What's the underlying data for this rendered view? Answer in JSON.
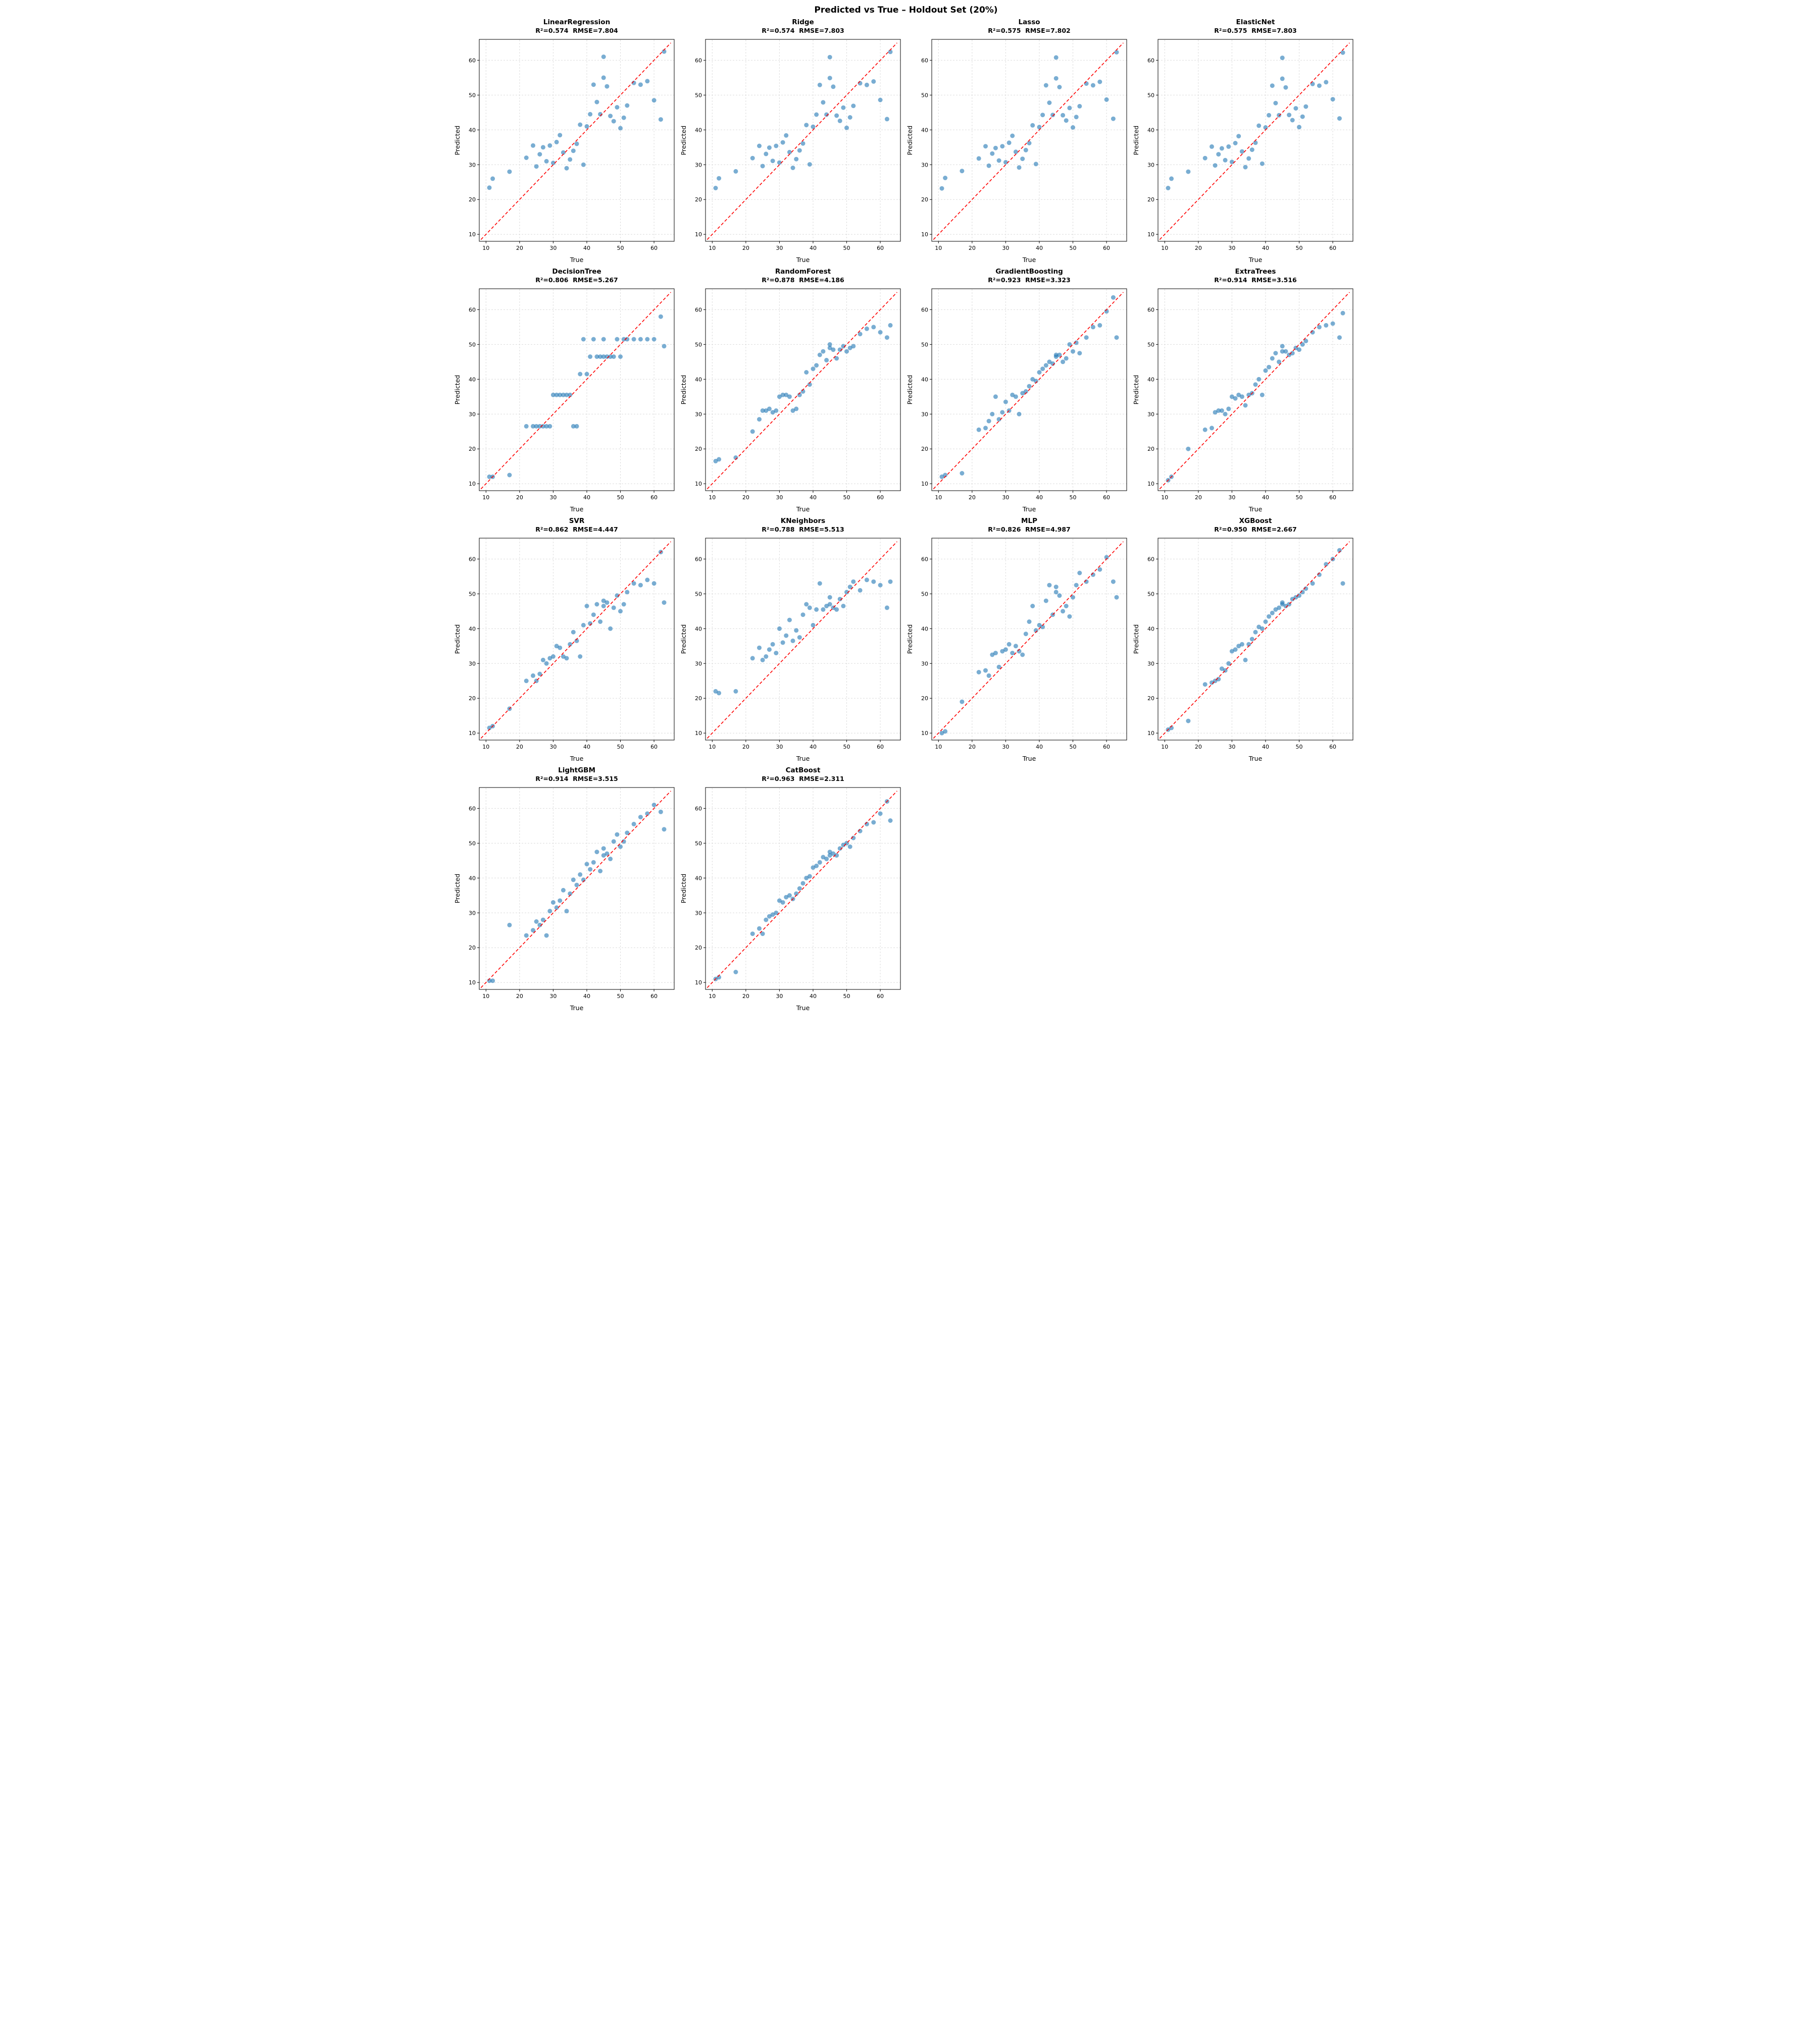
{
  "title": "Predicted vs True – Holdout Set (20%)",
  "colors": {
    "point": "#1f77b4",
    "identity_line": "#ff0000",
    "grid": "#dcdcdc",
    "axis": "#000000"
  },
  "chart_data": {
    "type": "scatter",
    "suptitle": "Predicted vs True – Holdout Set (20%)",
    "xlabel": "True",
    "ylabel": "Predicted",
    "xlim": [
      8,
      66
    ],
    "ylim": [
      8,
      66
    ],
    "ticks": [
      10,
      20,
      30,
      40,
      50,
      60
    ],
    "grid": true,
    "identity_line": {
      "from": 8.5,
      "to": 65,
      "style": "red dashed y=x"
    },
    "layout": {
      "columns": 4,
      "rows": 4,
      "subplot_count": 14
    },
    "true_values": [
      11,
      12,
      17,
      22,
      24,
      25,
      26,
      27,
      28,
      29,
      30,
      31,
      32,
      33,
      34,
      35,
      36,
      37,
      38,
      39,
      40,
      41,
      42,
      43,
      44,
      45,
      45,
      46,
      47,
      48,
      49,
      50,
      51,
      52,
      54,
      56,
      58,
      60,
      62,
      63
    ],
    "models": [
      {
        "name": "LinearRegression",
        "r2": "0.574",
        "rmse": "7.804",
        "stats": "R²=0.574  RMSE=7.804",
        "predicted": [
          23.4,
          26,
          28,
          32,
          35.5,
          29.5,
          33,
          35,
          31,
          35.5,
          30.5,
          36.5,
          38.5,
          33.5,
          29,
          31.5,
          34,
          36,
          41.5,
          30,
          41,
          44.5,
          53,
          48,
          44.5,
          61,
          55,
          52.5,
          44,
          42.5,
          46.5,
          40.5,
          43.5,
          47,
          53.5,
          53,
          54,
          48.5,
          43,
          62.5
        ]
      },
      {
        "name": "Ridge",
        "r2": "0.574",
        "rmse": "7.803",
        "stats": "R²=0.574  RMSE=7.803",
        "predicted": [
          23.3,
          26.1,
          28.1,
          31.9,
          35.4,
          29.6,
          33.1,
          34.9,
          31.1,
          35.4,
          30.6,
          36.4,
          38.4,
          33.6,
          29.1,
          31.6,
          34.1,
          36.1,
          41.4,
          30.1,
          40.9,
          44.4,
          52.9,
          47.9,
          44.4,
          60.9,
          54.9,
          52.4,
          44.1,
          42.6,
          46.4,
          40.6,
          43.6,
          46.9,
          53.4,
          52.9,
          53.9,
          48.6,
          43.1,
          62.4
        ]
      },
      {
        "name": "Lasso",
        "r2": "0.575",
        "rmse": "7.802",
        "stats": "R²=0.575  RMSE=7.802",
        "predicted": [
          23.2,
          26.2,
          28.2,
          31.8,
          35.3,
          29.7,
          33.2,
          34.8,
          31.2,
          35.3,
          30.7,
          36.3,
          38.3,
          33.7,
          29.2,
          31.7,
          34.2,
          36.2,
          41.3,
          30.2,
          40.8,
          44.3,
          52.8,
          47.8,
          44.3,
          60.8,
          54.8,
          52.3,
          44.2,
          42.7,
          46.3,
          40.7,
          43.7,
          46.8,
          53.3,
          52.8,
          53.8,
          48.7,
          43.2,
          62.3
        ]
      },
      {
        "name": "ElasticNet",
        "r2": "0.575",
        "rmse": "7.803",
        "stats": "R²=0.575  RMSE=7.803",
        "predicted": [
          23.3,
          26.0,
          28.0,
          31.9,
          35.2,
          29.8,
          33.0,
          34.7,
          31.3,
          35.2,
          30.8,
          36.2,
          38.2,
          33.8,
          29.3,
          31.8,
          34.3,
          36.3,
          41.2,
          30.3,
          40.7,
          44.2,
          52.7,
          47.7,
          44.2,
          60.7,
          54.7,
          52.2,
          44.3,
          42.8,
          46.2,
          40.8,
          43.8,
          46.7,
          53.2,
          52.7,
          53.7,
          48.8,
          43.3,
          62.2
        ]
      },
      {
        "name": "DecisionTree",
        "r2": "0.806",
        "rmse": "5.267",
        "stats": "R²=0.806  RMSE=5.267",
        "predicted": [
          12,
          12,
          12.5,
          26.5,
          26.5,
          26.5,
          26.5,
          26.5,
          26.5,
          26.5,
          35.5,
          35.5,
          35.5,
          35.5,
          35.5,
          35.5,
          26.5,
          26.5,
          41.5,
          51.5,
          41.5,
          46.5,
          51.5,
          46.5,
          46.5,
          46.5,
          51.5,
          46.5,
          46.5,
          46.5,
          51.5,
          46.5,
          51.5,
          51.5,
          51.5,
          51.5,
          51.5,
          51.5,
          58,
          49.5
        ]
      },
      {
        "name": "RandomForest",
        "r2": "0.878",
        "rmse": "4.186",
        "stats": "R²=0.878  RMSE=4.186",
        "predicted": [
          16.5,
          17,
          17.5,
          25,
          28.5,
          31,
          31,
          31.5,
          30.5,
          31,
          35,
          35.5,
          35.5,
          35,
          31,
          31.5,
          35.5,
          36.5,
          42,
          38.5,
          43,
          44,
          47,
          48,
          45.5,
          49,
          50,
          48.5,
          46,
          48.5,
          49.5,
          48,
          49,
          49.5,
          53,
          54.5,
          55,
          53.5,
          52,
          55.5
        ]
      },
      {
        "name": "GradientBoosting",
        "r2": "0.923",
        "rmse": "3.323",
        "stats": "R²=0.923  RMSE=3.323",
        "predicted": [
          12,
          12.5,
          13,
          25.5,
          26,
          28,
          30,
          35,
          28.5,
          30.5,
          33.5,
          31,
          35.5,
          35,
          30,
          36,
          36.5,
          38,
          40,
          39.5,
          42,
          43,
          44,
          45,
          44.5,
          47,
          46.5,
          47,
          45,
          46,
          50,
          48,
          50.5,
          47.5,
          52,
          55,
          55.5,
          59.5,
          63.5,
          52
        ]
      },
      {
        "name": "ExtraTrees",
        "r2": "0.914",
        "rmse": "3.516",
        "stats": "R²=0.914  RMSE=3.516",
        "predicted": [
          11,
          12,
          20,
          25.5,
          26,
          30.5,
          31,
          31,
          30,
          31.5,
          35,
          34.5,
          35.5,
          35,
          32.5,
          35.5,
          36,
          38.5,
          40,
          35.5,
          42.5,
          43.5,
          46,
          47.5,
          45,
          48,
          49.5,
          48,
          47,
          47.5,
          49,
          48.5,
          50,
          51,
          53.5,
          55,
          55.5,
          56,
          52,
          59
        ]
      },
      {
        "name": "SVR",
        "r2": "0.862",
        "rmse": "4.447",
        "stats": "R²=0.862  RMSE=4.447",
        "predicted": [
          11.5,
          12,
          17,
          25,
          26.5,
          25,
          27,
          31,
          30,
          31.5,
          32,
          35,
          34.5,
          32,
          31.5,
          35.5,
          39,
          36.5,
          32,
          41,
          46.5,
          41.5,
          44,
          47,
          42,
          46.5,
          48,
          47.5,
          40,
          46,
          49.5,
          45,
          47,
          50.5,
          53,
          52.5,
          54,
          53,
          62,
          47.5
        ]
      },
      {
        "name": "KNeighbors",
        "r2": "0.788",
        "rmse": "5.513",
        "stats": "R²=0.788  RMSE=5.513",
        "predicted": [
          22,
          21.5,
          22,
          31.5,
          34.5,
          31,
          32,
          34,
          35.5,
          33,
          40,
          36,
          38,
          42.5,
          36.5,
          39.5,
          37.5,
          44,
          47,
          46,
          41,
          45.5,
          53,
          45.5,
          46.5,
          47,
          49,
          46,
          45.5,
          48.5,
          46.5,
          50.5,
          52,
          53.5,
          51,
          54,
          53.5,
          52.5,
          46,
          53.5
        ]
      },
      {
        "name": "MLP",
        "r2": "0.826",
        "rmse": "4.987",
        "stats": "R²=0.826  RMSE=4.987",
        "predicted": [
          10,
          10.5,
          19,
          27.5,
          28,
          26.5,
          32.5,
          33,
          29,
          33.5,
          34,
          35.5,
          33,
          35,
          33.5,
          32.5,
          38.5,
          42,
          46.5,
          39.5,
          41,
          40.5,
          48,
          52.5,
          44,
          50.5,
          52,
          49.5,
          45,
          46.5,
          43.5,
          49,
          52.5,
          56,
          53.5,
          55.5,
          57,
          60.5,
          53.5,
          49
        ]
      },
      {
        "name": "XGBoost",
        "r2": "0.950",
        "rmse": "2.667",
        "stats": "R²=0.950  RMSE=2.667",
        "predicted": [
          11,
          11.5,
          13.5,
          24,
          24.5,
          25,
          25.5,
          28.5,
          28,
          30,
          33.5,
          34,
          35,
          35.5,
          31,
          35.5,
          37,
          39,
          40.5,
          40,
          42,
          43.5,
          44.5,
          45.5,
          46,
          47,
          47.5,
          46.5,
          47,
          48.5,
          49,
          49.5,
          50.5,
          51.5,
          53,
          55.5,
          58.5,
          60,
          62.5,
          53
        ]
      },
      {
        "name": "LightGBM",
        "r2": "0.914",
        "rmse": "3.515",
        "stats": "R²=0.914  RMSE=3.515",
        "predicted": [
          10.5,
          10.5,
          26.5,
          23.5,
          25,
          27.5,
          26.5,
          28,
          23.5,
          30.5,
          33,
          31.5,
          33.5,
          36.5,
          30.5,
          35.5,
          39.5,
          38,
          41,
          39.5,
          44,
          42.5,
          44.5,
          47.5,
          42,
          46.5,
          48.5,
          47,
          45.5,
          50.5,
          52.5,
          49,
          50.5,
          53,
          55.5,
          57.5,
          58.5,
          61,
          59,
          54
        ]
      },
      {
        "name": "CatBoost",
        "r2": "0.963",
        "rmse": "2.311",
        "stats": "R²=0.963  RMSE=2.311",
        "predicted": [
          11,
          11.5,
          13,
          24,
          25.5,
          24,
          28,
          29,
          29.5,
          30,
          33.5,
          33,
          34.5,
          35,
          34,
          35.5,
          37,
          38.5,
          40,
          40.5,
          43,
          43.5,
          44.5,
          46,
          45.5,
          46.5,
          47.5,
          47,
          46.5,
          48.5,
          49.5,
          50,
          49,
          51.5,
          53.5,
          55.5,
          56,
          58.5,
          62,
          56.5
        ]
      }
    ]
  }
}
